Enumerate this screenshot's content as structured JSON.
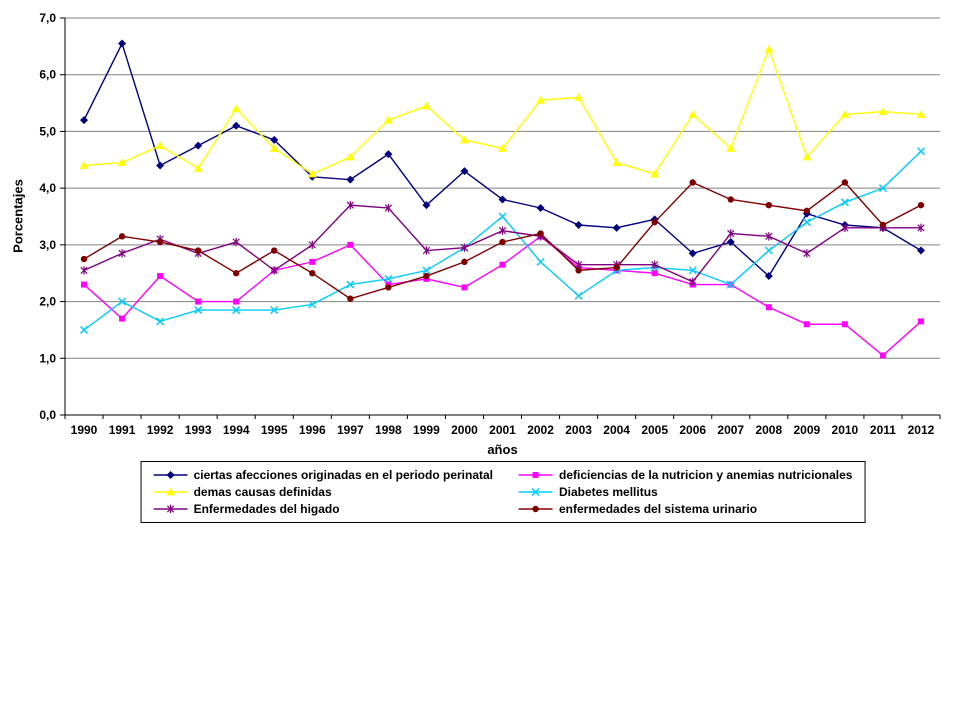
{
  "chart_data": {
    "type": "line",
    "title": "",
    "xlabel": "años",
    "ylabel": "Porcentajes",
    "ylim": [
      0.0,
      7.0
    ],
    "ytick_step": 1.0,
    "decimal_separator": ",",
    "grid": true,
    "legend_position": "bottom",
    "x": [
      1990,
      1991,
      1992,
      1993,
      1994,
      1995,
      1996,
      1997,
      1998,
      1999,
      2000,
      2001,
      2002,
      2003,
      2004,
      2005,
      2006,
      2007,
      2008,
      2009,
      2010,
      2011,
      2012
    ],
    "series": [
      {
        "name": "ciertas afecciones originadas en el periodo perinatal",
        "color": "#000080",
        "marker": "diamond",
        "values": [
          5.2,
          6.55,
          4.4,
          4.75,
          5.1,
          4.85,
          4.2,
          4.15,
          4.6,
          3.7,
          4.3,
          3.8,
          3.65,
          3.35,
          3.3,
          3.45,
          2.85,
          3.05,
          2.45,
          3.55,
          3.35,
          3.3,
          2.9
        ]
      },
      {
        "name": "deficiencias de la nutricion y anemias nutricionales",
        "color": "#FF00FF",
        "marker": "square",
        "values": [
          2.3,
          1.7,
          2.45,
          2.0,
          2.0,
          2.55,
          2.7,
          3.0,
          2.3,
          2.4,
          2.25,
          2.65,
          3.15,
          2.6,
          2.55,
          2.5,
          2.3,
          2.3,
          1.9,
          1.6,
          1.6,
          1.05,
          1.65
        ]
      },
      {
        "name": "demas causas definidas",
        "color": "#FFFF00",
        "marker": "triangle",
        "values": [
          4.4,
          4.45,
          4.75,
          4.35,
          5.4,
          4.7,
          4.25,
          4.55,
          5.2,
          5.45,
          4.85,
          4.7,
          5.55,
          5.6,
          4.45,
          4.25,
          5.3,
          4.7,
          6.45,
          4.55,
          5.3,
          5.35,
          5.3
        ]
      },
      {
        "name": "Diabetes mellitus",
        "color": "#00CCFF",
        "marker": "x",
        "values": [
          1.5,
          2.0,
          1.65,
          1.85,
          1.85,
          1.85,
          1.95,
          2.3,
          2.4,
          2.55,
          2.95,
          3.5,
          2.7,
          2.1,
          2.55,
          2.6,
          2.55,
          2.3,
          2.9,
          3.4,
          3.75,
          4.0,
          4.65
        ]
      },
      {
        "name": "Enfermedades del higado",
        "color": "#800080",
        "marker": "asterisk",
        "values": [
          2.55,
          2.85,
          3.1,
          2.85,
          3.05,
          2.55,
          3.0,
          3.7,
          3.65,
          2.9,
          2.95,
          3.25,
          3.15,
          2.65,
          2.65,
          2.65,
          2.35,
          3.2,
          3.15,
          2.85,
          3.3,
          3.3,
          3.3
        ]
      },
      {
        "name": "enfermedades del sistema urinario",
        "color": "#800000",
        "marker": "circle",
        "values": [
          2.75,
          3.15,
          3.05,
          2.9,
          2.5,
          2.9,
          2.5,
          2.05,
          2.25,
          2.45,
          2.7,
          3.05,
          3.2,
          2.55,
          2.6,
          3.4,
          4.1,
          3.8,
          3.7,
          3.6,
          4.1,
          3.35,
          3.7
        ]
      }
    ]
  }
}
